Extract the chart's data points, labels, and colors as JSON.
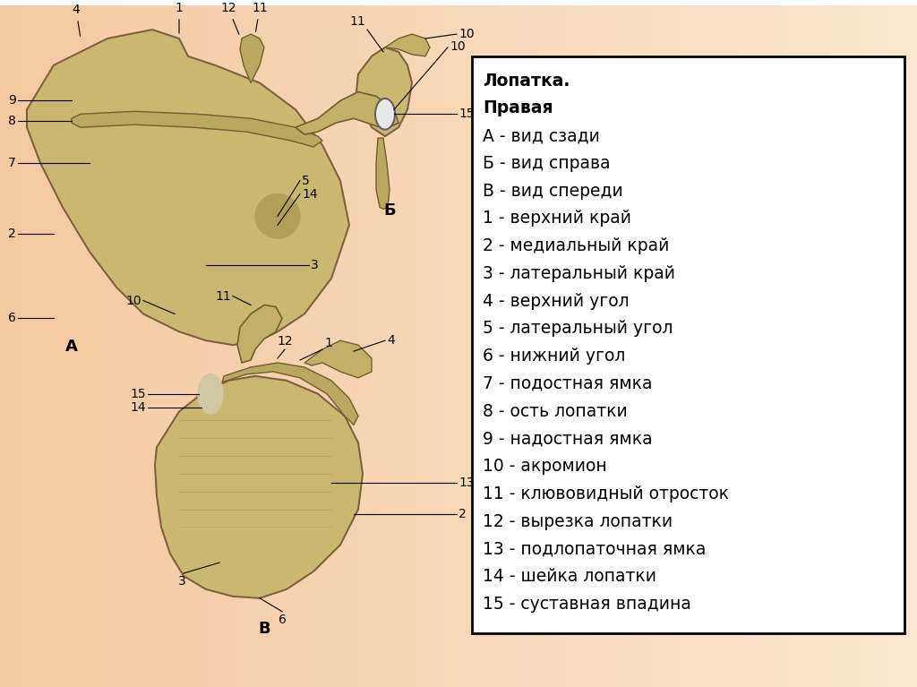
{
  "bg_color_left": "#F5C9A0",
  "bg_color_right": "#FAE8D0",
  "bg_color_top_right": "#F0D0B0",
  "text_box_bg": "#FFFFFF",
  "text_box_border": "#000000",
  "text_lines": [
    "Лопатка.",
    "Правая",
    "А - вид сзади",
    "Б - вид справа",
    "В - вид спереди",
    "1 - верхний край",
    "2 - медиальный край",
    "3 - латеральный край",
    "4 - верхний угол",
    "5 - латеральный угол",
    "6 - нижний угол",
    "7 - подостная ямка",
    "8 - ость лопатки",
    "9 - надостная ямка",
    "10 - акромион",
    "11 - клювовидный отросток",
    "12 - вырезка лопатки",
    "13 - подлопаточная ямка",
    "14 - шейка лопатки",
    "15 - суставная впадина"
  ],
  "text_fontsize": 13.5,
  "label_fontsize": 10,
  "label_color": "#000000",
  "line_color": "#000000"
}
